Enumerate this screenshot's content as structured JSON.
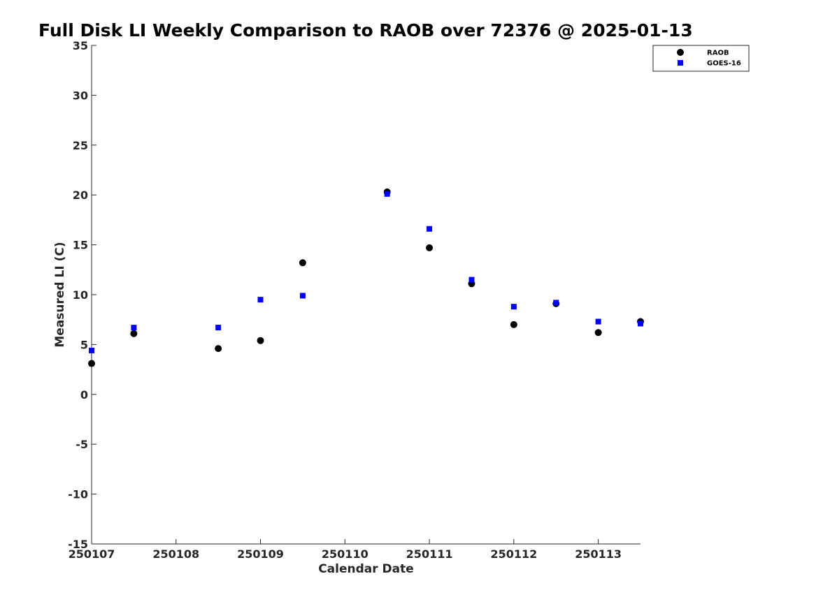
{
  "chart_data": {
    "type": "scatter",
    "title": "Full Disk LI Weekly Comparison to RAOB over 72376 @ 2025-01-13",
    "xlabel": "Calendar Date",
    "ylabel": "Measured LI (C)",
    "xlim": [
      250107,
      250113.5
    ],
    "ylim": [
      -15,
      35
    ],
    "xticks": [
      {
        "value": 250107,
        "label": "250107"
      },
      {
        "value": 250108,
        "label": "250108"
      },
      {
        "value": 250109,
        "label": "250109"
      },
      {
        "value": 250110,
        "label": "250110"
      },
      {
        "value": 250111,
        "label": "250111"
      },
      {
        "value": 250112,
        "label": "250112"
      },
      {
        "value": 250113,
        "label": "250113"
      }
    ],
    "yticks": [
      {
        "value": 35,
        "label": "35"
      },
      {
        "value": 30,
        "label": "30"
      },
      {
        "value": 25,
        "label": "25"
      },
      {
        "value": 20,
        "label": "20"
      },
      {
        "value": 15,
        "label": "15"
      },
      {
        "value": 10,
        "label": "10"
      },
      {
        "value": 5,
        "label": "5"
      },
      {
        "value": 0,
        "label": "0"
      },
      {
        "value": -5,
        "label": "-5"
      },
      {
        "value": -10,
        "label": "-10"
      },
      {
        "value": -15,
        "label": "-15"
      }
    ],
    "grid": false,
    "legend_position": "top-right",
    "series": [
      {
        "name": "RAOB",
        "marker": "circle",
        "color": "#000000",
        "x": [
          250107,
          250107.5,
          250108.5,
          250109,
          250109.5,
          250110.5,
          250111,
          250111.5,
          250112,
          250112.5,
          250113,
          250113.5
        ],
        "y": [
          3.1,
          6.1,
          4.6,
          5.4,
          13.2,
          20.3,
          14.7,
          11.1,
          7.0,
          9.1,
          6.2,
          7.3
        ]
      },
      {
        "name": "GOES-16",
        "marker": "square",
        "color": "#0000ff",
        "x": [
          250107,
          250107.5,
          250108.5,
          250109,
          250109.5,
          250110.5,
          250111,
          250111.5,
          250112,
          250112.5,
          250113,
          250113.5
        ],
        "y": [
          4.4,
          6.7,
          6.7,
          9.5,
          9.9,
          20.1,
          16.6,
          11.5,
          8.8,
          9.2,
          7.3,
          7.1
        ]
      }
    ]
  }
}
